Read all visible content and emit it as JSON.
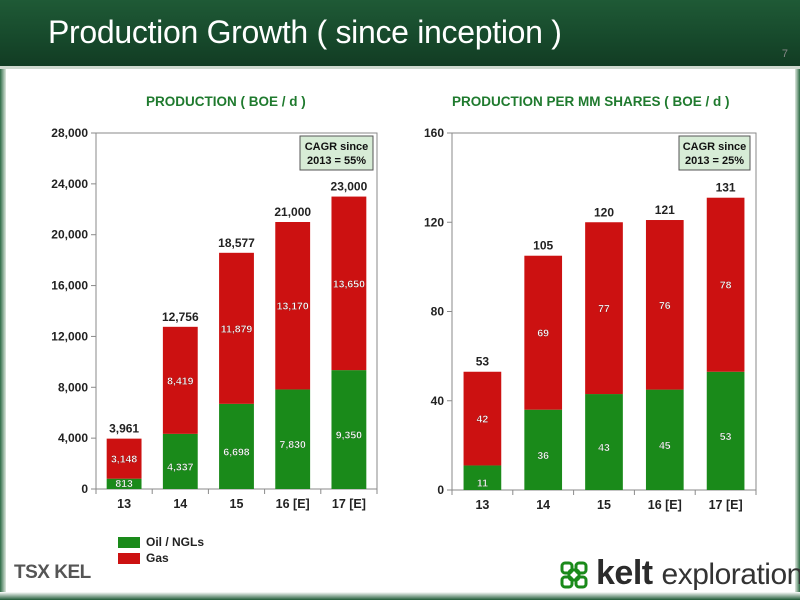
{
  "header": {
    "title": "Production Growth ( since inception )",
    "page_number": "7"
  },
  "legend": {
    "items": [
      {
        "label": "Oil / NGLs",
        "color": "#1a8a1a"
      },
      {
        "label": "Gas",
        "color": "#cc1111"
      }
    ]
  },
  "colors": {
    "oil": "#1a8a1a",
    "gas": "#cc1111",
    "header_green": "#1f5a36",
    "title_green": "#1f7a2e",
    "cagr_box": "#d7ecd6"
  },
  "logos": {
    "tsx": "TSX KEL",
    "kelt_word": "kelt",
    "kelt_suffix": "exploration"
  },
  "chart_data": [
    {
      "type": "bar",
      "stacked": true,
      "title": "PRODUCTION ( BOE / d )",
      "categories": [
        "13",
        "14",
        "15",
        "16 [E]",
        "17 [E]"
      ],
      "series": [
        {
          "name": "Oil / NGLs",
          "values": [
            813,
            4337,
            6698,
            7830,
            9350
          ]
        },
        {
          "name": "Gas",
          "values": [
            3148,
            8419,
            11879,
            13170,
            13650
          ]
        }
      ],
      "totals": [
        "3,961",
        "12,756",
        "18,577",
        "21,000",
        "23,000"
      ],
      "oil_labels": [
        "813",
        "4,337",
        "6,698",
        "7,830",
        "9,350"
      ],
      "gas_labels": [
        "3,148",
        "8,419",
        "11,879",
        "13,170",
        "13,650"
      ],
      "ylim": [
        0,
        28000
      ],
      "yticks": [
        0,
        4000,
        8000,
        12000,
        16000,
        20000,
        24000,
        28000
      ],
      "ytick_labels": [
        "0",
        "4,000",
        "8,000",
        "12,000",
        "16,000",
        "20,000",
        "24,000",
        "28,000"
      ],
      "annotation": [
        "CAGR since",
        "2013 = 55%"
      ],
      "grid": false
    },
    {
      "type": "bar",
      "stacked": true,
      "title": "PRODUCTION PER MM SHARES ( BOE / d )",
      "categories": [
        "13",
        "14",
        "15",
        "16 [E]",
        "17 [E]"
      ],
      "series": [
        {
          "name": "Oil / NGLs",
          "values": [
            11,
            36,
            43,
            45,
            53
          ]
        },
        {
          "name": "Gas",
          "values": [
            42,
            69,
            77,
            76,
            78
          ]
        }
      ],
      "totals": [
        "53",
        "105",
        "120",
        "121",
        "131"
      ],
      "oil_labels": [
        "11",
        "36",
        "43",
        "45",
        "53"
      ],
      "gas_labels": [
        "42",
        "69",
        "77",
        "76",
        "78"
      ],
      "ylim": [
        0,
        160
      ],
      "yticks": [
        0,
        40,
        80,
        120,
        160
      ],
      "ytick_labels": [
        "0",
        "40",
        "80",
        "120",
        "160"
      ],
      "annotation": [
        "CAGR since",
        "2013 = 25%"
      ],
      "grid": false
    }
  ]
}
